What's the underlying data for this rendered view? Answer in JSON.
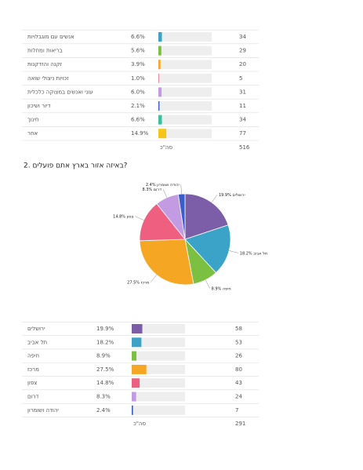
{
  "categories_table": {
    "rows": [
      {
        "label": "אנשים עם מוגבלויות",
        "percent": 6.6,
        "percent_label": "6.6%",
        "count": 34,
        "color": "#3ba3c7"
      },
      {
        "label": "בריאות ומחלות",
        "percent": 5.6,
        "percent_label": "5.6%",
        "count": 29,
        "color": "#7cc042"
      },
      {
        "label": "זקנה והזדקנות",
        "percent": 3.9,
        "percent_label": "3.9%",
        "count": 20,
        "color": "#f5a623"
      },
      {
        "label": "זכויות ניצולי שואה",
        "percent": 1.0,
        "percent_label": "1.0%",
        "count": 5,
        "color": "#ef5f80"
      },
      {
        "label": "עוני ואנשים במצוקה כלכלית",
        "percent": 6.0,
        "percent_label": "6.0%",
        "count": 31,
        "color": "#c39be3"
      },
      {
        "label": "דיור ושיכון",
        "percent": 2.1,
        "percent_label": "2.1%",
        "count": 11,
        "color": "#3b5fc8"
      },
      {
        "label": "חינוך",
        "percent": 6.6,
        "percent_label": "6.6%",
        "count": 34,
        "color": "#3cbf9c"
      },
      {
        "label": "אחר",
        "percent": 14.9,
        "percent_label": "14.9%",
        "count": 77,
        "color": "#f5c518"
      }
    ],
    "total_label": "סה\"כ",
    "total": 516
  },
  "question_2": {
    "title": "2. באיזה אזור בארץ אתם פועלים?"
  },
  "region_table": {
    "rows": [
      {
        "label": "ירושלים",
        "percent": 19.9,
        "percent_label": "19.9%",
        "count": 58,
        "color": "#7b5ea7"
      },
      {
        "label": "תל אביב",
        "percent": 18.2,
        "percent_label": "18.2%",
        "count": 53,
        "color": "#3ba3c7"
      },
      {
        "label": "חיפה",
        "percent": 8.9,
        "percent_label": "8.9%",
        "count": 26,
        "color": "#7cc042"
      },
      {
        "label": "מרכז",
        "percent": 27.5,
        "percent_label": "27.5%",
        "count": 80,
        "color": "#f5a623"
      },
      {
        "label": "צפון",
        "percent": 14.8,
        "percent_label": "14.8%",
        "count": 43,
        "color": "#ef5f80"
      },
      {
        "label": "דרום",
        "percent": 8.3,
        "percent_label": "8.3%",
        "count": 24,
        "color": "#c39be3"
      },
      {
        "label": "יהודה ושומרון",
        "percent": 2.4,
        "percent_label": "2.4%",
        "count": 7,
        "color": "#3b5fc8"
      }
    ],
    "total_label": "סה\"כ",
    "total": 291
  }
}
